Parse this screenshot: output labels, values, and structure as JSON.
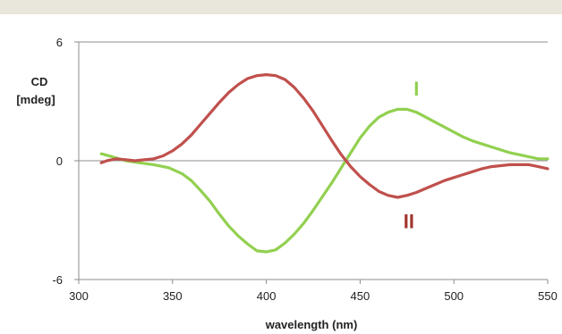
{
  "chart_data": {
    "type": "line",
    "ylabel_line1": "CD",
    "ylabel_line2": "[mdeg]",
    "xlabel": "wavelength (nm)",
    "xlim": [
      300,
      550
    ],
    "ylim": [
      -6,
      6
    ],
    "x_ticks": [
      300,
      350,
      400,
      450,
      500,
      550
    ],
    "y_ticks": [
      -6,
      0,
      6
    ],
    "x_tick_labels": [
      "300",
      "350",
      "400",
      "450",
      "500",
      "550"
    ],
    "y_tick_labels": [
      "-6",
      "0",
      "6"
    ],
    "grid": false,
    "series": [
      {
        "name": "I",
        "color": "#92d050",
        "points": [
          [
            312,
            0.35
          ],
          [
            318,
            0.2
          ],
          [
            325,
            0.0
          ],
          [
            332,
            -0.1
          ],
          [
            340,
            -0.2
          ],
          [
            348,
            -0.35
          ],
          [
            355,
            -0.65
          ],
          [
            360,
            -1.0
          ],
          [
            365,
            -1.5
          ],
          [
            370,
            -2.05
          ],
          [
            375,
            -2.7
          ],
          [
            380,
            -3.3
          ],
          [
            385,
            -3.8
          ],
          [
            390,
            -4.2
          ],
          [
            395,
            -4.55
          ],
          [
            400,
            -4.6
          ],
          [
            405,
            -4.5
          ],
          [
            410,
            -4.15
          ],
          [
            415,
            -3.7
          ],
          [
            420,
            -3.15
          ],
          [
            425,
            -2.5
          ],
          [
            430,
            -1.8
          ],
          [
            435,
            -1.1
          ],
          [
            440,
            -0.35
          ],
          [
            445,
            0.4
          ],
          [
            450,
            1.15
          ],
          [
            455,
            1.75
          ],
          [
            460,
            2.2
          ],
          [
            465,
            2.45
          ],
          [
            470,
            2.6
          ],
          [
            475,
            2.6
          ],
          [
            480,
            2.45
          ],
          [
            485,
            2.2
          ],
          [
            490,
            1.95
          ],
          [
            495,
            1.7
          ],
          [
            500,
            1.45
          ],
          [
            505,
            1.2
          ],
          [
            510,
            1.0
          ],
          [
            515,
            0.85
          ],
          [
            520,
            0.7
          ],
          [
            525,
            0.55
          ],
          [
            530,
            0.4
          ],
          [
            535,
            0.3
          ],
          [
            540,
            0.2
          ],
          [
            545,
            0.1
          ],
          [
            550,
            0.1
          ]
        ]
      },
      {
        "name": "II",
        "color": "#c0504d",
        "points": [
          [
            312,
            -0.1
          ],
          [
            315,
            0.0
          ],
          [
            320,
            0.1
          ],
          [
            325,
            0.05
          ],
          [
            330,
            0.0
          ],
          [
            335,
            0.05
          ],
          [
            340,
            0.1
          ],
          [
            345,
            0.25
          ],
          [
            350,
            0.5
          ],
          [
            355,
            0.85
          ],
          [
            360,
            1.3
          ],
          [
            365,
            1.85
          ],
          [
            370,
            2.4
          ],
          [
            375,
            2.95
          ],
          [
            380,
            3.45
          ],
          [
            385,
            3.85
          ],
          [
            390,
            4.15
          ],
          [
            395,
            4.3
          ],
          [
            400,
            4.35
          ],
          [
            405,
            4.3
          ],
          [
            410,
            4.1
          ],
          [
            415,
            3.7
          ],
          [
            420,
            3.15
          ],
          [
            425,
            2.5
          ],
          [
            430,
            1.75
          ],
          [
            435,
            1.0
          ],
          [
            440,
            0.3
          ],
          [
            445,
            -0.3
          ],
          [
            450,
            -0.8
          ],
          [
            455,
            -1.2
          ],
          [
            460,
            -1.55
          ],
          [
            465,
            -1.75
          ],
          [
            470,
            -1.85
          ],
          [
            475,
            -1.75
          ],
          [
            480,
            -1.6
          ],
          [
            485,
            -1.4
          ],
          [
            490,
            -1.2
          ],
          [
            495,
            -1.0
          ],
          [
            500,
            -0.85
          ],
          [
            505,
            -0.7
          ],
          [
            510,
            -0.55
          ],
          [
            515,
            -0.4
          ],
          [
            520,
            -0.3
          ],
          [
            525,
            -0.25
          ],
          [
            530,
            -0.2
          ],
          [
            535,
            -0.2
          ],
          [
            540,
            -0.2
          ],
          [
            545,
            -0.3
          ],
          [
            550,
            -0.4
          ]
        ]
      }
    ],
    "annotations": [
      {
        "text": "I",
        "x": 480,
        "y": 3.3,
        "color": "#92d050"
      },
      {
        "text": "II",
        "x": 476,
        "y": -3.4,
        "color": "#a0352e"
      }
    ]
  }
}
